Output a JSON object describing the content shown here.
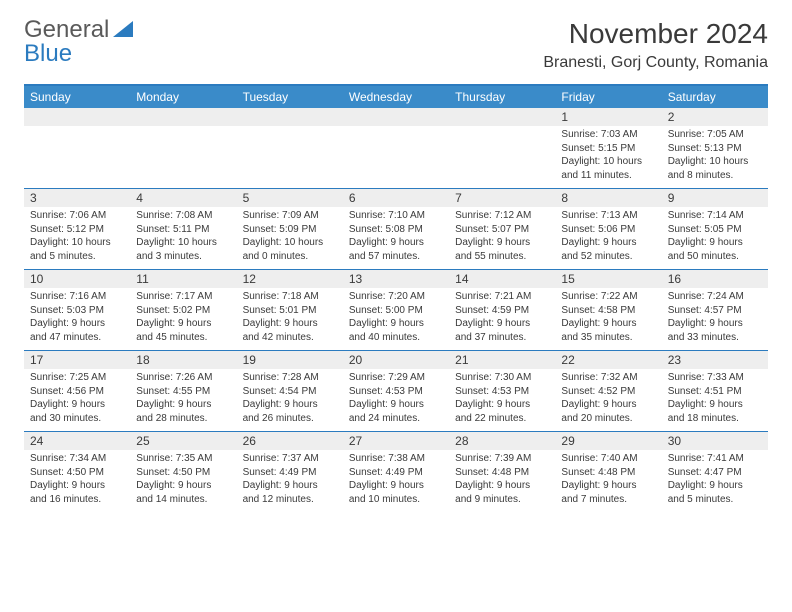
{
  "logo": {
    "gray": "General",
    "blue": "Blue"
  },
  "title": "November 2024",
  "location": "Branesti, Gorj County, Romania",
  "day_headers": [
    "Sunday",
    "Monday",
    "Tuesday",
    "Wednesday",
    "Thursday",
    "Friday",
    "Saturday"
  ],
  "colors": {
    "header_bg": "#3a8bc9",
    "border": "#2b7bbf",
    "num_bg": "#eeeeee",
    "text": "#3a3a3a",
    "logo_gray": "#5a5a5a",
    "logo_blue": "#2b7bbf"
  },
  "weeks": [
    [
      {
        "n": "",
        "sunrise": "",
        "sunset": "",
        "daylight": ""
      },
      {
        "n": "",
        "sunrise": "",
        "sunset": "",
        "daylight": ""
      },
      {
        "n": "",
        "sunrise": "",
        "sunset": "",
        "daylight": ""
      },
      {
        "n": "",
        "sunrise": "",
        "sunset": "",
        "daylight": ""
      },
      {
        "n": "",
        "sunrise": "",
        "sunset": "",
        "daylight": ""
      },
      {
        "n": "1",
        "sunrise": "Sunrise: 7:03 AM",
        "sunset": "Sunset: 5:15 PM",
        "daylight": "Daylight: 10 hours and 11 minutes."
      },
      {
        "n": "2",
        "sunrise": "Sunrise: 7:05 AM",
        "sunset": "Sunset: 5:13 PM",
        "daylight": "Daylight: 10 hours and 8 minutes."
      }
    ],
    [
      {
        "n": "3",
        "sunrise": "Sunrise: 7:06 AM",
        "sunset": "Sunset: 5:12 PM",
        "daylight": "Daylight: 10 hours and 5 minutes."
      },
      {
        "n": "4",
        "sunrise": "Sunrise: 7:08 AM",
        "sunset": "Sunset: 5:11 PM",
        "daylight": "Daylight: 10 hours and 3 minutes."
      },
      {
        "n": "5",
        "sunrise": "Sunrise: 7:09 AM",
        "sunset": "Sunset: 5:09 PM",
        "daylight": "Daylight: 10 hours and 0 minutes."
      },
      {
        "n": "6",
        "sunrise": "Sunrise: 7:10 AM",
        "sunset": "Sunset: 5:08 PM",
        "daylight": "Daylight: 9 hours and 57 minutes."
      },
      {
        "n": "7",
        "sunrise": "Sunrise: 7:12 AM",
        "sunset": "Sunset: 5:07 PM",
        "daylight": "Daylight: 9 hours and 55 minutes."
      },
      {
        "n": "8",
        "sunrise": "Sunrise: 7:13 AM",
        "sunset": "Sunset: 5:06 PM",
        "daylight": "Daylight: 9 hours and 52 minutes."
      },
      {
        "n": "9",
        "sunrise": "Sunrise: 7:14 AM",
        "sunset": "Sunset: 5:05 PM",
        "daylight": "Daylight: 9 hours and 50 minutes."
      }
    ],
    [
      {
        "n": "10",
        "sunrise": "Sunrise: 7:16 AM",
        "sunset": "Sunset: 5:03 PM",
        "daylight": "Daylight: 9 hours and 47 minutes."
      },
      {
        "n": "11",
        "sunrise": "Sunrise: 7:17 AM",
        "sunset": "Sunset: 5:02 PM",
        "daylight": "Daylight: 9 hours and 45 minutes."
      },
      {
        "n": "12",
        "sunrise": "Sunrise: 7:18 AM",
        "sunset": "Sunset: 5:01 PM",
        "daylight": "Daylight: 9 hours and 42 minutes."
      },
      {
        "n": "13",
        "sunrise": "Sunrise: 7:20 AM",
        "sunset": "Sunset: 5:00 PM",
        "daylight": "Daylight: 9 hours and 40 minutes."
      },
      {
        "n": "14",
        "sunrise": "Sunrise: 7:21 AM",
        "sunset": "Sunset: 4:59 PM",
        "daylight": "Daylight: 9 hours and 37 minutes."
      },
      {
        "n": "15",
        "sunrise": "Sunrise: 7:22 AM",
        "sunset": "Sunset: 4:58 PM",
        "daylight": "Daylight: 9 hours and 35 minutes."
      },
      {
        "n": "16",
        "sunrise": "Sunrise: 7:24 AM",
        "sunset": "Sunset: 4:57 PM",
        "daylight": "Daylight: 9 hours and 33 minutes."
      }
    ],
    [
      {
        "n": "17",
        "sunrise": "Sunrise: 7:25 AM",
        "sunset": "Sunset: 4:56 PM",
        "daylight": "Daylight: 9 hours and 30 minutes."
      },
      {
        "n": "18",
        "sunrise": "Sunrise: 7:26 AM",
        "sunset": "Sunset: 4:55 PM",
        "daylight": "Daylight: 9 hours and 28 minutes."
      },
      {
        "n": "19",
        "sunrise": "Sunrise: 7:28 AM",
        "sunset": "Sunset: 4:54 PM",
        "daylight": "Daylight: 9 hours and 26 minutes."
      },
      {
        "n": "20",
        "sunrise": "Sunrise: 7:29 AM",
        "sunset": "Sunset: 4:53 PM",
        "daylight": "Daylight: 9 hours and 24 minutes."
      },
      {
        "n": "21",
        "sunrise": "Sunrise: 7:30 AM",
        "sunset": "Sunset: 4:53 PM",
        "daylight": "Daylight: 9 hours and 22 minutes."
      },
      {
        "n": "22",
        "sunrise": "Sunrise: 7:32 AM",
        "sunset": "Sunset: 4:52 PM",
        "daylight": "Daylight: 9 hours and 20 minutes."
      },
      {
        "n": "23",
        "sunrise": "Sunrise: 7:33 AM",
        "sunset": "Sunset: 4:51 PM",
        "daylight": "Daylight: 9 hours and 18 minutes."
      }
    ],
    [
      {
        "n": "24",
        "sunrise": "Sunrise: 7:34 AM",
        "sunset": "Sunset: 4:50 PM",
        "daylight": "Daylight: 9 hours and 16 minutes."
      },
      {
        "n": "25",
        "sunrise": "Sunrise: 7:35 AM",
        "sunset": "Sunset: 4:50 PM",
        "daylight": "Daylight: 9 hours and 14 minutes."
      },
      {
        "n": "26",
        "sunrise": "Sunrise: 7:37 AM",
        "sunset": "Sunset: 4:49 PM",
        "daylight": "Daylight: 9 hours and 12 minutes."
      },
      {
        "n": "27",
        "sunrise": "Sunrise: 7:38 AM",
        "sunset": "Sunset: 4:49 PM",
        "daylight": "Daylight: 9 hours and 10 minutes."
      },
      {
        "n": "28",
        "sunrise": "Sunrise: 7:39 AM",
        "sunset": "Sunset: 4:48 PM",
        "daylight": "Daylight: 9 hours and 9 minutes."
      },
      {
        "n": "29",
        "sunrise": "Sunrise: 7:40 AM",
        "sunset": "Sunset: 4:48 PM",
        "daylight": "Daylight: 9 hours and 7 minutes."
      },
      {
        "n": "30",
        "sunrise": "Sunrise: 7:41 AM",
        "sunset": "Sunset: 4:47 PM",
        "daylight": "Daylight: 9 hours and 5 minutes."
      }
    ]
  ]
}
